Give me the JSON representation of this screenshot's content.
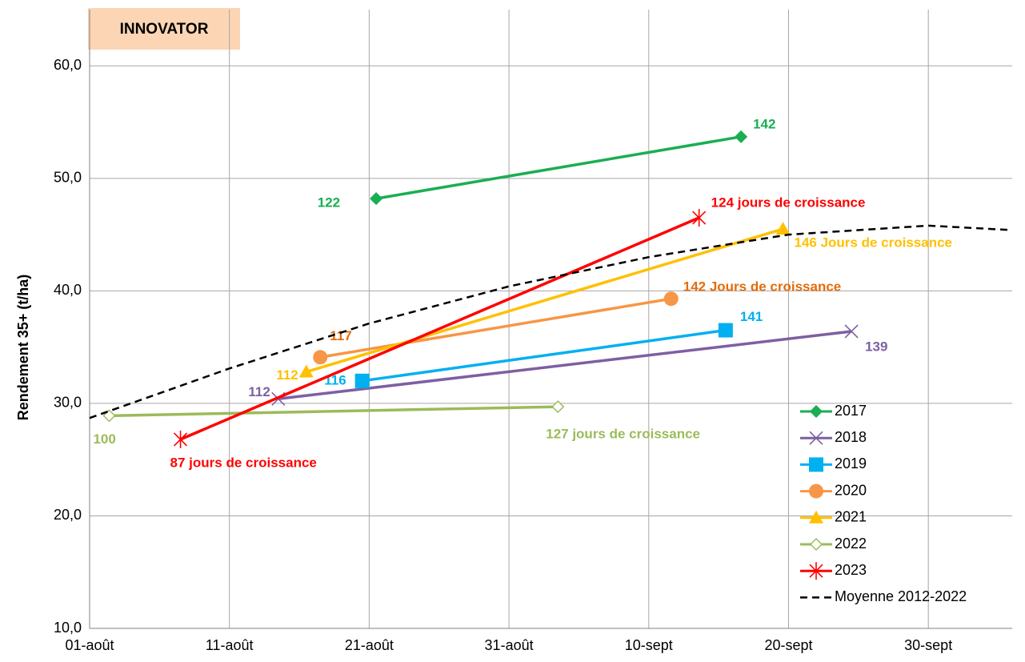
{
  "chart_data": {
    "type": "line",
    "title": "INNOVATOR",
    "y_label": "Rendement 35+ (t/ha)",
    "xlim": [
      0,
      66
    ],
    "ylim": [
      10,
      65
    ],
    "xticks": [
      {
        "value": 0,
        "label": "01-août"
      },
      {
        "value": 10,
        "label": "11-août"
      },
      {
        "value": 20,
        "label": "21-août"
      },
      {
        "value": 30,
        "label": "31-août"
      },
      {
        "value": 40,
        "label": "10-sept"
      },
      {
        "value": 50,
        "label": "20-sept"
      },
      {
        "value": 60,
        "label": "30-sept"
      }
    ],
    "yticks": [
      {
        "value": 10,
        "label": "10,0"
      },
      {
        "value": 20,
        "label": "20,0"
      },
      {
        "value": 30,
        "label": "30,0"
      },
      {
        "value": 40,
        "label": "40,0"
      },
      {
        "value": 50,
        "label": "50,0"
      },
      {
        "value": 60,
        "label": "60,0"
      }
    ],
    "grid": true,
    "legend": "lower right",
    "series": [
      {
        "name": "2017",
        "color": "#1aae52",
        "marker": "diamond",
        "x": [
          20.5,
          46.6
        ],
        "values": [
          48.2,
          53.7
        ],
        "point_labels": [
          "122",
          "142"
        ]
      },
      {
        "name": "2018",
        "color": "#7e5fa2",
        "marker": "x",
        "x": [
          13.5,
          54.5
        ],
        "values": [
          30.4,
          36.4
        ],
        "point_labels": [
          "112",
          "139"
        ]
      },
      {
        "name": "2019",
        "color": "#00b0f0",
        "marker": "square",
        "x": [
          19.5,
          45.5
        ],
        "values": [
          32.0,
          36.5
        ],
        "point_labels": [
          "116",
          "141"
        ]
      },
      {
        "name": "2020",
        "color": "#f79646",
        "label_color": "#e46c0a",
        "marker": "circle",
        "x": [
          16.5,
          41.6
        ],
        "values": [
          34.1,
          39.3
        ],
        "point_labels": [
          "117",
          "142 Jours de croissance"
        ]
      },
      {
        "name": "2021",
        "color": "#ffc000",
        "marker": "triangle",
        "x": [
          15.5,
          49.6
        ],
        "values": [
          32.8,
          45.5
        ],
        "point_labels": [
          "112",
          "146 Jours de croissance"
        ]
      },
      {
        "name": "2022",
        "color": "#9bbb59",
        "marker": "hollow-diamond",
        "x": [
          1.4,
          33.5
        ],
        "values": [
          28.9,
          29.7
        ],
        "point_labels": [
          "100",
          "127 jours de croissance"
        ]
      },
      {
        "name": "2023",
        "color": "#ff0000",
        "marker": "star",
        "x": [
          6.5,
          43.6
        ],
        "values": [
          26.8,
          46.5
        ],
        "point_labels": [
          "87 jours de croissance",
          "124 jours de croissance"
        ]
      },
      {
        "name": "Moyenne 2012-2022",
        "color": "#000000",
        "dashed": true,
        "x": [
          0,
          10,
          20,
          30,
          40,
          50,
          60,
          66
        ],
        "values": [
          28.7,
          33.1,
          37.1,
          40.4,
          43.0,
          45.0,
          45.8,
          45.4
        ]
      }
    ]
  }
}
